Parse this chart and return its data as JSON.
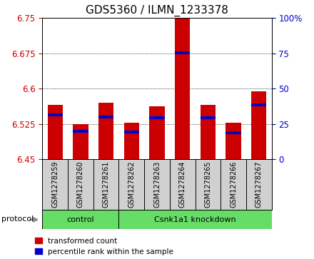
{
  "title": "GDS5360 / ILMN_1233378",
  "samples": [
    "GSM1278259",
    "GSM1278260",
    "GSM1278261",
    "GSM1278262",
    "GSM1278263",
    "GSM1278264",
    "GSM1278265",
    "GSM1278266",
    "GSM1278267"
  ],
  "red_values": [
    6.565,
    6.525,
    6.57,
    6.527,
    6.563,
    6.75,
    6.565,
    6.527,
    6.595
  ],
  "blue_values": [
    6.545,
    6.51,
    6.54,
    6.508,
    6.538,
    6.676,
    6.538,
    6.507,
    6.565
  ],
  "ylim_left": [
    6.45,
    6.75
  ],
  "ylim_right": [
    0,
    100
  ],
  "yticks_left": [
    6.45,
    6.525,
    6.6,
    6.675,
    6.75
  ],
  "yticks_right": [
    0,
    25,
    50,
    75,
    100
  ],
  "ytick_labels_left": [
    "6.45",
    "6.525",
    "6.6",
    "6.675",
    "6.75"
  ],
  "ytick_labels_right": [
    "0",
    "25",
    "50",
    "75",
    "100%"
  ],
  "bar_bottom": 6.45,
  "bar_width": 0.6,
  "blue_bar_height": 0.006,
  "control_label": "control",
  "knockdown_label": "Csnk1a1 knockdown",
  "protocol_label": "protocol",
  "red_color": "#cc0000",
  "blue_color": "#0000cc",
  "green_color": "#66dd66",
  "gray_color": "#d0d0d0",
  "legend_red_label": "transformed count",
  "legend_blue_label": "percentile rank within the sample",
  "title_fontsize": 11,
  "tick_fontsize": 8.5,
  "sample_fontsize": 7,
  "proto_fontsize": 8,
  "legend_fontsize": 7.5
}
